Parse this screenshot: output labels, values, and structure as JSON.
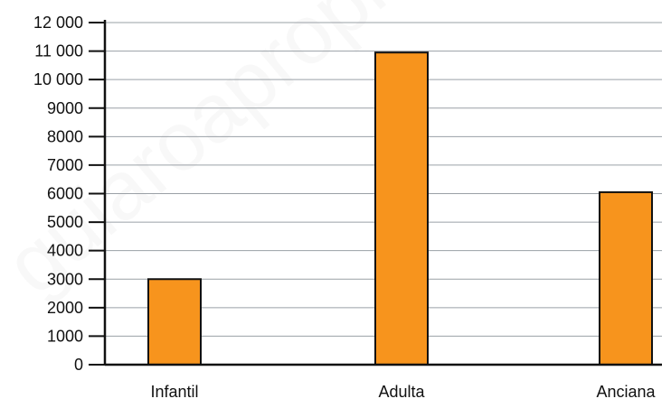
{
  "chart_data": {
    "type": "bar",
    "categories": [
      "Infantil",
      "Adulta",
      "Anciana"
    ],
    "values": [
      3000,
      10950,
      6050
    ],
    "title": "",
    "xlabel": "",
    "ylabel": "",
    "ylim": [
      0,
      12000
    ],
    "yticks": [
      0,
      1000,
      2000,
      3000,
      4000,
      5000,
      6000,
      7000,
      8000,
      9000,
      10000,
      11000,
      12000
    ],
    "ytick_labels": [
      "0",
      "1000",
      "2000",
      "3000",
      "4000",
      "5000",
      "6000",
      "7000",
      "8000",
      "9000",
      "10 000",
      "11 000",
      "12 000"
    ],
    "grid": true,
    "legend": "none"
  },
  "colors": {
    "bar_fill": "#f7941d",
    "bar_stroke": "#111111",
    "grid": "#9aa0a6",
    "axis": "#111111",
    "text": "#111111",
    "watermark": "#d9d9d9"
  },
  "watermark_text": "guiaroapropio"
}
